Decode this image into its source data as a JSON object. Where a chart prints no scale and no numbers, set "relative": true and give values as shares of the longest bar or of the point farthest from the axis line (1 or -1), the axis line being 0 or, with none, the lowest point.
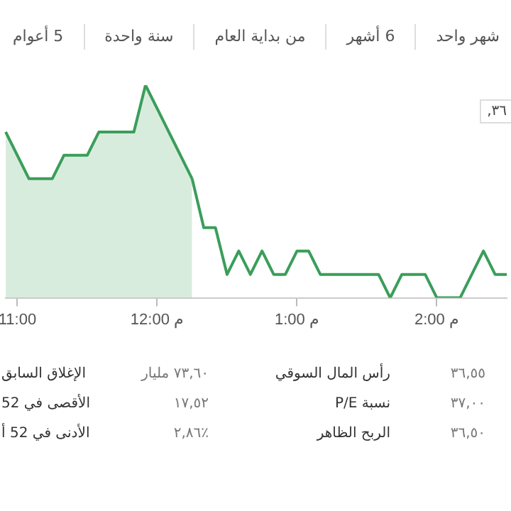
{
  "chart_data": {
    "type": "line",
    "relative": true,
    "categories": [
      null,
      "11:00",
      null,
      null,
      null,
      null,
      null,
      null,
      null,
      null,
      null,
      null,
      null,
      "12:00 م",
      null,
      null,
      null,
      null,
      null,
      null,
      null,
      null,
      null,
      null,
      null,
      "1:00 م",
      null,
      null,
      null,
      null,
      null,
      null,
      null,
      null,
      null,
      null,
      null,
      "2:00 م",
      null,
      null,
      null,
      null,
      null,
      null
    ],
    "series": [
      {
        "type": "area",
        "color": "#3a9e5a",
        "values": [
          0.78,
          0.67,
          0.56,
          0.56,
          0.56,
          0.67,
          0.67,
          0.67,
          0.78,
          0.78,
          0.78,
          0.78,
          1,
          0.89,
          0.78,
          0.67,
          0.56,
          null,
          null,
          null,
          null,
          null,
          null,
          null,
          null,
          null,
          null,
          null,
          null,
          null,
          null,
          null,
          null,
          null,
          null,
          null,
          null,
          null,
          null,
          null,
          null,
          null,
          null,
          null
        ]
      },
      {
        "color": "#3a9e5a",
        "values": [
          null,
          null,
          null,
          null,
          null,
          null,
          null,
          null,
          null,
          null,
          null,
          null,
          null,
          null,
          null,
          null,
          0.56,
          0.33,
          0.33,
          0.11,
          0.22,
          0.11,
          0.22,
          0.11,
          0.11,
          0.22,
          0.22,
          0.11,
          0.11,
          0.11,
          0.11,
          0.11,
          0.11,
          0,
          0.11,
          0.11,
          0.11,
          0,
          0,
          0,
          0.11,
          0.22,
          0.11,
          0.11
        ]
      }
    ],
    "grid": false,
    "legend": false,
    "marker": "none",
    "line_style": "solid",
    "annotations": [
      "٣٦,",
      "شهر واحد",
      "6 أشهر",
      "من بداية العام",
      "سنة واحدة",
      "5 أعوام",
      "٣٦,٥٥",
      "رأس المال السوقي",
      "٧٣,٦٠ مليار",
      "الإغلاق السابق",
      "٣٧,٠٠",
      "نسبة P/E",
      "١٧,٥٢",
      "الأقصى في 52",
      "٣٦,٥٠",
      "الربح الظاهر",
      "٪٢,٨٦",
      "الأدنى في 52 أ"
    ]
  }
}
